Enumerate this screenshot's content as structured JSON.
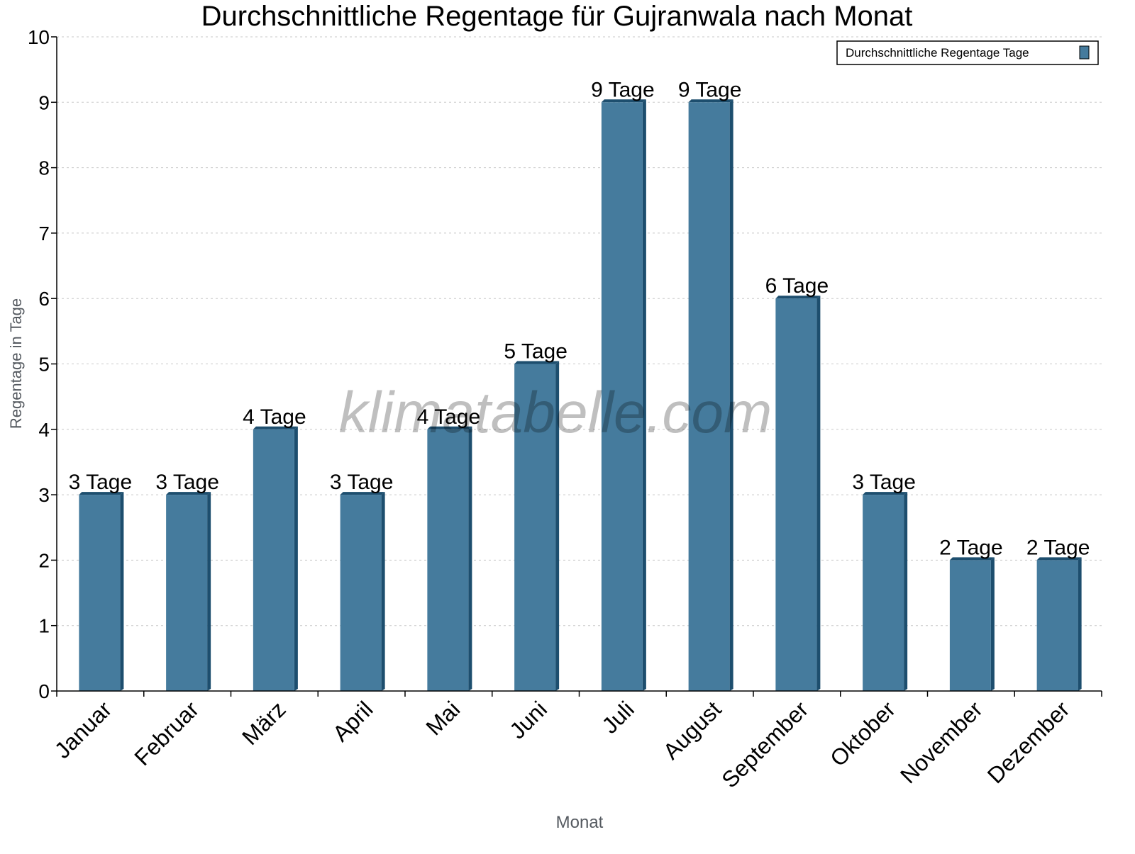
{
  "chart_data": {
    "type": "bar",
    "title": "Durchschnittliche Regentage für Gujranwala nach Monat",
    "xlabel": "Monat",
    "ylabel": "Regentage in Tage",
    "ylim": [
      0,
      10
    ],
    "yticks": [
      "0",
      "1",
      "2",
      "3",
      "4",
      "5",
      "6",
      "7",
      "8",
      "9",
      "10"
    ],
    "grid": true,
    "legend_placement": "top-right",
    "categories": [
      "Januar",
      "Februar",
      "März",
      "April",
      "Mai",
      "Juni",
      "Juli",
      "August",
      "September",
      "Oktober",
      "November",
      "Dezember"
    ],
    "series": [
      {
        "name": "Durchschnittliche Regentage Tage",
        "values": [
          3,
          3,
          4,
          3,
          4,
          5,
          9,
          9,
          6,
          3,
          2,
          2
        ],
        "data_labels": [
          "3 Tage",
          "3 Tage",
          "4 Tage",
          "3 Tage",
          "4 Tage",
          "5 Tage",
          "9 Tage",
          "9 Tage",
          "6 Tage",
          "3 Tage",
          "2 Tage",
          "2 Tage"
        ],
        "color": "#457b9d",
        "side_color": "#1d4e6e"
      }
    ]
  },
  "watermark": "klimatabelle.com"
}
